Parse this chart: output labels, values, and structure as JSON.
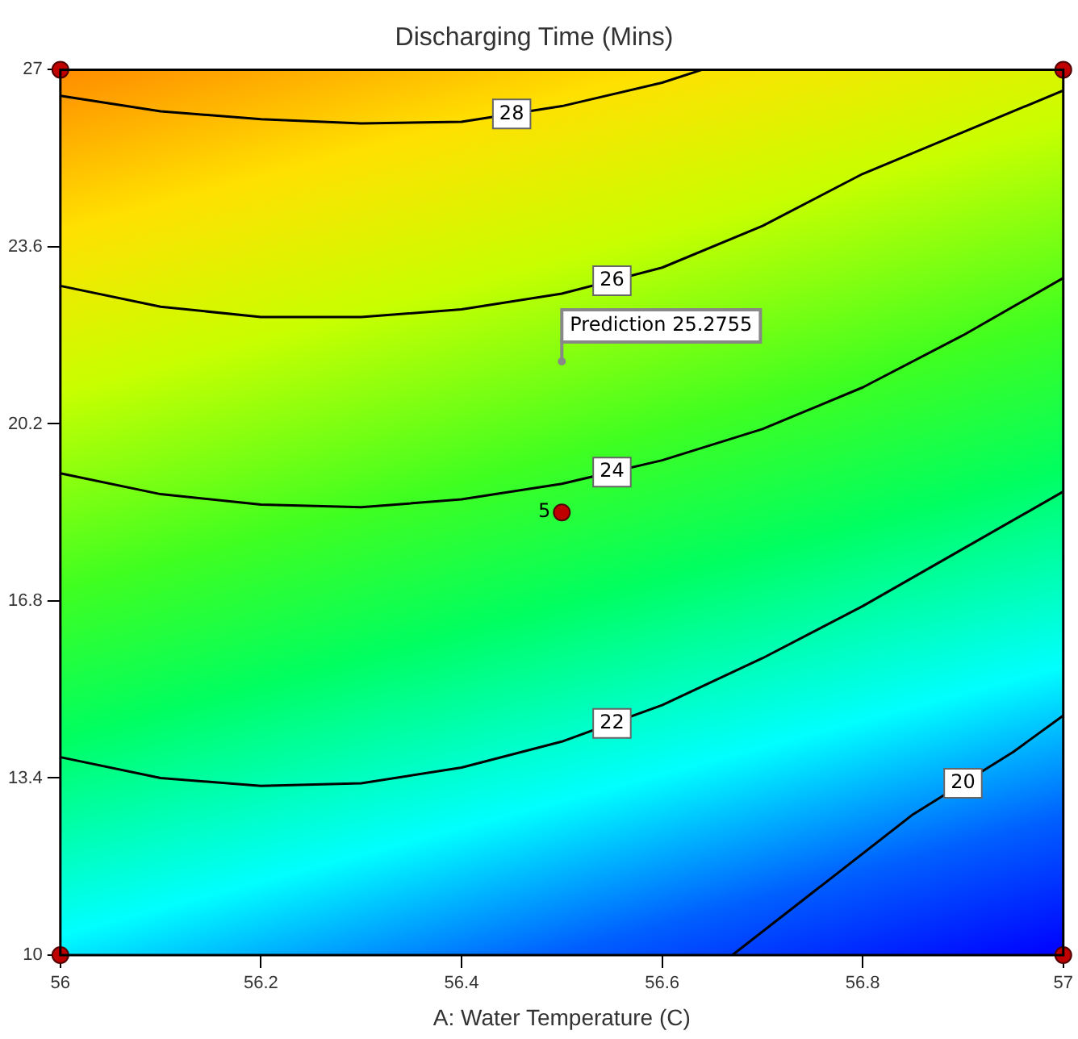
{
  "chart_data": {
    "type": "line",
    "title": "Discharging Time (Mins)",
    "xlabel": "A: Water Temperature (C)",
    "xlim": [
      56,
      57
    ],
    "xticks": [
      56,
      56.2,
      56.4,
      56.6,
      56.8,
      57
    ],
    "ylim": [
      10,
      27
    ],
    "yticks": [
      10,
      13.4,
      16.8,
      20.2,
      23.6,
      27
    ],
    "grid": false,
    "marker": "none",
    "line_style": "solid",
    "series": [
      {
        "name": "28",
        "color": "#000000",
        "x": [
          56,
          56.1,
          56.2,
          56.3,
          56.4,
          56.5,
          56.6,
          56.64
        ],
        "values": [
          26.5,
          26.2,
          26.05,
          25.97,
          26.0,
          26.3,
          26.75,
          27
        ]
      },
      {
        "name": "26",
        "color": "#000000",
        "x": [
          56,
          56.1,
          56.2,
          56.3,
          56.4,
          56.5,
          56.6,
          56.7,
          56.8,
          56.9,
          57
        ],
        "values": [
          22.85,
          22.45,
          22.25,
          22.25,
          22.4,
          22.7,
          23.2,
          24.0,
          25.0,
          25.8,
          26.6
        ]
      },
      {
        "name": "24",
        "color": "#000000",
        "x": [
          56,
          56.1,
          56.2,
          56.3,
          56.4,
          56.5,
          56.6,
          56.7,
          56.8,
          56.9,
          57
        ],
        "values": [
          19.25,
          18.85,
          18.65,
          18.6,
          18.75,
          19.05,
          19.5,
          20.1,
          20.9,
          21.9,
          23.0
        ]
      },
      {
        "name": "22",
        "color": "#000000",
        "x": [
          56,
          56.1,
          56.2,
          56.3,
          56.4,
          56.5,
          56.6,
          56.7,
          56.8,
          56.9,
          57
        ],
        "values": [
          13.8,
          13.4,
          13.25,
          13.3,
          13.6,
          14.1,
          14.8,
          15.7,
          16.7,
          17.8,
          18.9
        ]
      },
      {
        "name": "20",
        "color": "#000000",
        "x": [
          56.67,
          56.75,
          56.85,
          56.95,
          57
        ],
        "values": [
          10,
          11.2,
          12.7,
          13.9,
          14.6
        ]
      },
      {
        "type": "scatter",
        "marker": "circle",
        "color": "#c00000",
        "x": [
          56,
          56,
          57,
          57,
          56.5
        ],
        "values": [
          10,
          27,
          10,
          27,
          18.5
        ]
      }
    ],
    "annotations": [
      {
        "text": "Prediction 25.2755",
        "x": 56.5,
        "y": 21.4
      },
      {
        "text": "5",
        "x": 56.5,
        "y": 18.5
      }
    ]
  }
}
